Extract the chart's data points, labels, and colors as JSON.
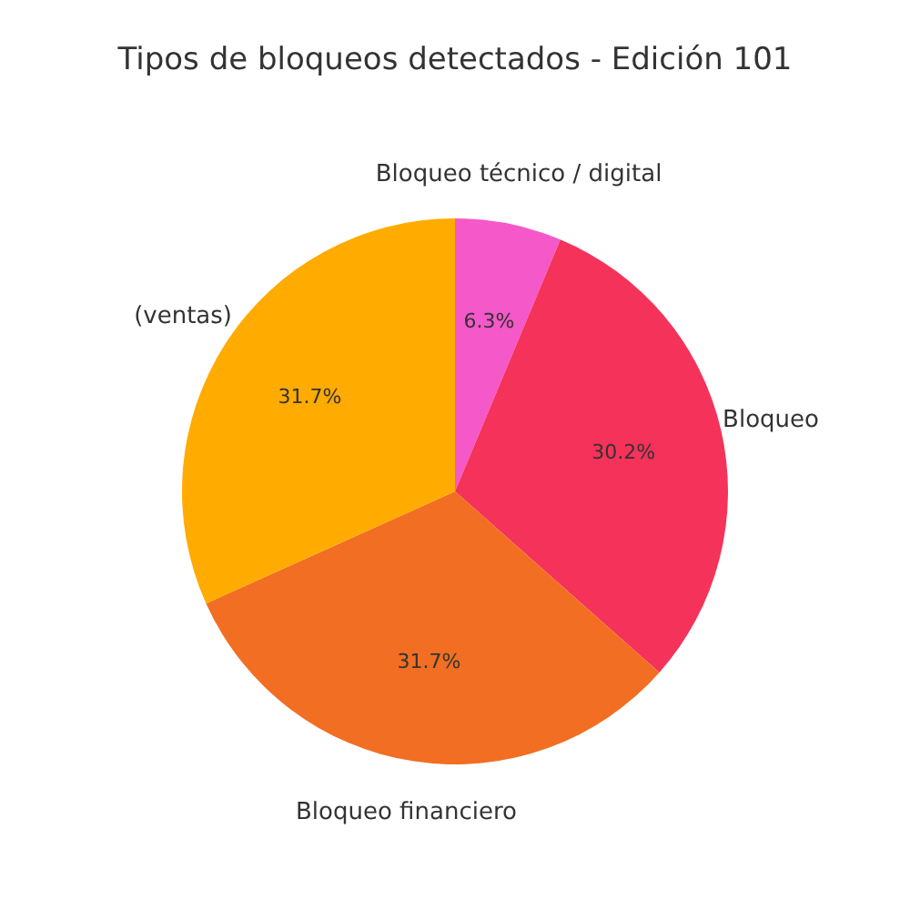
{
  "chart_data": {
    "type": "pie",
    "title": "Tipos de bloqueos detectados - Edición 101",
    "categories": [
      "Bloqueo técnico / digital",
      "Bloqueo",
      "Bloqueo financiero",
      "(ventas)"
    ],
    "values": [
      6.3,
      30.2,
      31.7,
      31.7
    ],
    "colors": [
      "#f558c8",
      "#f5325a",
      "#f26e22",
      "#ffab00"
    ],
    "value_labels": [
      "6.3%",
      "30.2%",
      "31.7%",
      "31.7%"
    ]
  }
}
